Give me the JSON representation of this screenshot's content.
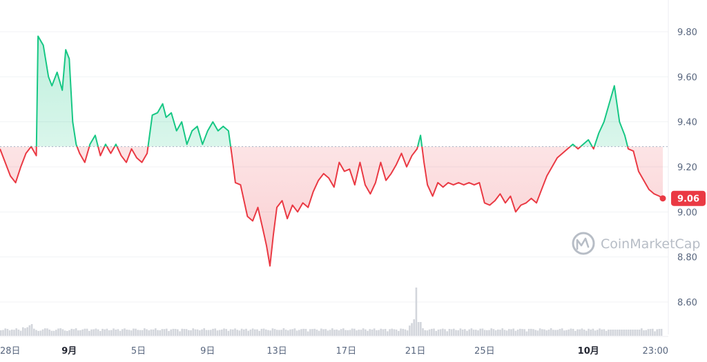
{
  "chart_data": {
    "type": "line",
    "colors": {
      "up": "#16c784",
      "down": "#ea3943",
      "grid": "#f0f2f5",
      "text": "#58667e",
      "volume": "#d3d6dc",
      "watermark": "#b7bdc6",
      "current_badge": "#ea3943"
    },
    "baseline": 9.29,
    "ylim": [
      8.45,
      9.98
    ],
    "yticks": [
      "9.80",
      "9.60",
      "9.40",
      "9.20",
      "9.00",
      "8.80",
      "8.60"
    ],
    "xticks": [
      {
        "label": "28日",
        "i": 0,
        "bold": false
      },
      {
        "label": "9月",
        "i": 4,
        "bold": true
      },
      {
        "label": "5日",
        "i": 8,
        "bold": false
      },
      {
        "label": "9日",
        "i": 12,
        "bold": false
      },
      {
        "label": "13日",
        "i": 16,
        "bold": false
      },
      {
        "label": "17日",
        "i": 20,
        "bold": false
      },
      {
        "label": "21日",
        "i": 24,
        "bold": false
      },
      {
        "label": "25日",
        "i": 28,
        "bold": false
      },
      {
        "label": "10月",
        "i": 34,
        "bold": true
      },
      {
        "label": "23:00",
        "i": 38,
        "bold": false
      }
    ],
    "current_value": "9.06",
    "grid": true,
    "watermark": "CoinMarketCap",
    "points": [
      [
        0.0,
        9.28
      ],
      [
        0.3,
        9.22
      ],
      [
        0.6,
        9.16
      ],
      [
        0.9,
        9.13
      ],
      [
        1.2,
        9.2
      ],
      [
        1.5,
        9.26
      ],
      [
        1.8,
        9.29
      ],
      [
        2.1,
        9.25
      ],
      [
        2.2,
        9.78
      ],
      [
        2.5,
        9.74
      ],
      [
        2.8,
        9.6
      ],
      [
        3.0,
        9.56
      ],
      [
        3.3,
        9.62
      ],
      [
        3.6,
        9.54
      ],
      [
        3.8,
        9.72
      ],
      [
        4.0,
        9.68
      ],
      [
        4.2,
        9.4
      ],
      [
        4.4,
        9.3
      ],
      [
        4.6,
        9.26
      ],
      [
        4.9,
        9.22
      ],
      [
        5.2,
        9.3
      ],
      [
        5.5,
        9.34
      ],
      [
        5.8,
        9.25
      ],
      [
        6.1,
        9.3
      ],
      [
        6.4,
        9.26
      ],
      [
        6.7,
        9.3
      ],
      [
        7.0,
        9.25
      ],
      [
        7.3,
        9.22
      ],
      [
        7.6,
        9.28
      ],
      [
        7.9,
        9.24
      ],
      [
        8.2,
        9.22
      ],
      [
        8.5,
        9.26
      ],
      [
        8.8,
        9.43
      ],
      [
        9.1,
        9.44
      ],
      [
        9.4,
        9.48
      ],
      [
        9.6,
        9.42
      ],
      [
        9.9,
        9.44
      ],
      [
        10.2,
        9.36
      ],
      [
        10.5,
        9.4
      ],
      [
        10.8,
        9.3
      ],
      [
        11.1,
        9.36
      ],
      [
        11.4,
        9.38
      ],
      [
        11.7,
        9.3
      ],
      [
        12.0,
        9.36
      ],
      [
        12.3,
        9.4
      ],
      [
        12.6,
        9.36
      ],
      [
        12.9,
        9.38
      ],
      [
        13.2,
        9.36
      ],
      [
        13.4,
        9.25
      ],
      [
        13.6,
        9.13
      ],
      [
        13.9,
        9.12
      ],
      [
        14.1,
        9.05
      ],
      [
        14.3,
        8.98
      ],
      [
        14.6,
        8.96
      ],
      [
        14.9,
        9.02
      ],
      [
        15.2,
        8.92
      ],
      [
        15.4,
        8.85
      ],
      [
        15.6,
        8.76
      ],
      [
        15.8,
        8.9
      ],
      [
        16.0,
        9.02
      ],
      [
        16.3,
        9.05
      ],
      [
        16.6,
        8.97
      ],
      [
        16.9,
        9.03
      ],
      [
        17.2,
        9.0
      ],
      [
        17.5,
        9.04
      ],
      [
        17.8,
        9.02
      ],
      [
        18.1,
        9.09
      ],
      [
        18.4,
        9.14
      ],
      [
        18.7,
        9.17
      ],
      [
        19.0,
        9.15
      ],
      [
        19.3,
        9.11
      ],
      [
        19.6,
        9.22
      ],
      [
        19.9,
        9.18
      ],
      [
        20.2,
        9.19
      ],
      [
        20.5,
        9.12
      ],
      [
        20.8,
        9.22
      ],
      [
        21.1,
        9.12
      ],
      [
        21.4,
        9.08
      ],
      [
        21.7,
        9.13
      ],
      [
        22.0,
        9.22
      ],
      [
        22.3,
        9.14
      ],
      [
        22.6,
        9.17
      ],
      [
        22.9,
        9.21
      ],
      [
        23.2,
        9.26
      ],
      [
        23.5,
        9.2
      ],
      [
        23.8,
        9.25
      ],
      [
        24.1,
        9.28
      ],
      [
        24.3,
        9.34
      ],
      [
        24.5,
        9.22
      ],
      [
        24.7,
        9.12
      ],
      [
        25.0,
        9.07
      ],
      [
        25.3,
        9.13
      ],
      [
        25.6,
        9.11
      ],
      [
        25.9,
        9.13
      ],
      [
        26.2,
        9.12
      ],
      [
        26.5,
        9.13
      ],
      [
        26.8,
        9.12
      ],
      [
        27.1,
        9.13
      ],
      [
        27.4,
        9.12
      ],
      [
        27.7,
        9.13
      ],
      [
        28.0,
        9.04
      ],
      [
        28.3,
        9.03
      ],
      [
        28.6,
        9.05
      ],
      [
        28.9,
        9.08
      ],
      [
        29.2,
        9.04
      ],
      [
        29.5,
        9.07
      ],
      [
        29.8,
        9.0
      ],
      [
        30.1,
        9.03
      ],
      [
        30.4,
        9.04
      ],
      [
        30.7,
        9.06
      ],
      [
        31.0,
        9.04
      ],
      [
        31.3,
        9.1
      ],
      [
        31.6,
        9.16
      ],
      [
        31.9,
        9.2
      ],
      [
        32.2,
        9.24
      ],
      [
        32.5,
        9.26
      ],
      [
        32.8,
        9.28
      ],
      [
        33.1,
        9.3
      ],
      [
        33.4,
        9.28
      ],
      [
        33.7,
        9.3
      ],
      [
        34.0,
        9.32
      ],
      [
        34.3,
        9.28
      ],
      [
        34.6,
        9.35
      ],
      [
        34.9,
        9.4
      ],
      [
        35.2,
        9.48
      ],
      [
        35.5,
        9.56
      ],
      [
        35.8,
        9.4
      ],
      [
        36.1,
        9.34
      ],
      [
        36.3,
        9.28
      ],
      [
        36.6,
        9.27
      ],
      [
        36.9,
        9.18
      ],
      [
        37.2,
        9.14
      ],
      [
        37.5,
        9.1
      ],
      [
        37.8,
        9.08
      ],
      [
        38.1,
        9.07
      ],
      [
        38.3,
        9.06
      ]
    ],
    "volume": [
      1,
      1,
      1,
      1,
      1,
      1,
      1,
      1,
      1,
      1,
      1,
      1,
      1,
      1,
      1,
      1,
      1,
      1,
      1,
      1,
      1,
      1,
      1,
      1,
      1,
      1,
      1,
      1,
      1,
      1,
      1,
      1,
      1,
      1,
      1,
      1,
      1,
      1,
      1,
      1,
      1,
      1,
      1,
      1,
      1,
      1,
      1,
      1,
      1,
      1,
      1,
      1,
      1,
      1,
      1,
      1,
      1,
      1,
      1,
      1,
      1,
      1,
      1,
      1,
      1,
      1,
      1,
      1,
      1,
      1,
      1,
      1,
      1,
      1,
      1,
      1,
      1,
      1,
      1,
      1,
      1,
      1,
      1,
      1,
      1,
      1,
      1,
      1,
      1,
      1,
      1,
      1,
      1,
      1,
      1,
      1,
      1,
      1,
      1,
      1,
      1,
      1,
      1,
      1,
      1,
      1,
      1,
      1,
      1,
      1,
      1,
      1,
      1,
      1,
      1,
      1,
      1,
      1,
      1,
      1,
      1,
      1,
      1,
      1,
      1,
      1,
      1,
      1,
      1,
      1,
      1,
      1,
      1,
      1,
      1,
      1,
      1,
      1,
      1,
      1,
      1,
      1,
      1,
      1,
      1,
      1,
      1,
      1,
      1,
      1,
      1,
      1,
      1,
      1,
      1,
      1,
      1,
      1,
      1,
      1,
      1,
      1,
      1,
      1,
      1,
      1,
      1,
      1,
      1,
      1,
      1,
      1,
      1,
      1,
      1,
      1,
      1,
      1,
      1,
      1,
      1,
      1,
      1,
      1,
      1,
      1,
      1,
      1,
      1,
      1,
      1,
      1,
      1,
      1,
      1,
      1,
      1,
      1,
      1,
      1,
      1,
      1,
      1,
      1,
      1,
      1,
      1,
      1,
      1,
      1,
      1,
      1,
      1,
      1,
      1,
      1,
      1,
      1,
      1,
      1,
      1,
      1,
      1,
      1,
      1,
      1,
      1,
      1,
      1,
      1,
      1,
      1,
      1,
      1,
      1,
      1,
      1,
      1,
      1,
      1,
      1,
      1,
      1,
      1,
      1,
      1,
      1,
      1,
      1,
      1,
      1,
      1,
      1,
      1,
      1,
      1,
      1,
      1,
      1,
      1,
      1,
      1,
      1,
      1,
      1,
      1,
      1,
      1,
      1,
      1,
      1,
      1,
      1,
      1,
      1,
      1,
      1,
      1,
      1,
      1,
      1,
      1,
      1,
      1,
      1,
      1,
      1,
      1,
      1,
      1,
      1,
      1,
      1,
      1,
      1,
      1,
      1,
      1,
      1,
      1
    ]
  }
}
